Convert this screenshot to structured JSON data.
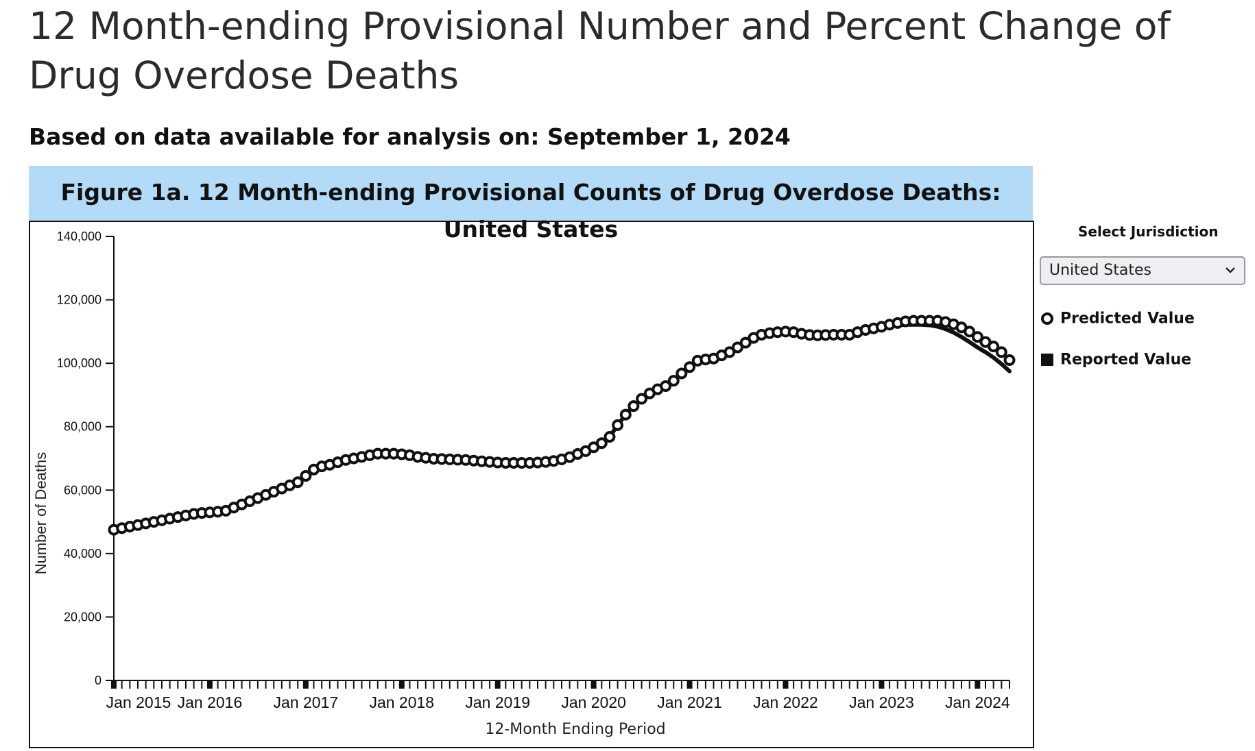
{
  "page": {
    "title": "12 Month-ending Provisional Number and Percent Change of Drug Overdose Deaths",
    "subtitle": "Based on data available for analysis on: September 1, 2024"
  },
  "figure": {
    "title": "Figure 1a. 12 Month-ending Provisional Counts of Drug Overdose Deaths: United States"
  },
  "controls": {
    "select_label": "Select Jurisdiction",
    "selected_value": "United States"
  },
  "legend": {
    "predicted_label": "Predicted Value",
    "reported_label": "Reported Value"
  },
  "colors": {
    "header_bg": "#b3dbf8",
    "line": "#111111",
    "marker_fill": "#ffffff"
  },
  "chart_data": {
    "type": "line",
    "title": "Figure 1a. 12 Month-ending Provisional Counts of Drug Overdose Deaths: United States",
    "xlabel": "12-Month Ending Period",
    "ylabel": "Number of Deaths",
    "ylim": [
      0,
      140000
    ],
    "yticks": [
      0,
      20000,
      40000,
      60000,
      80000,
      100000,
      120000,
      140000
    ],
    "ytick_labels": [
      "0",
      "20,000",
      "40,000",
      "60,000",
      "80,000",
      "100,000",
      "120,000",
      "140,000"
    ],
    "xticks": [
      "Jan 2015",
      "Jan 2016",
      "Jan 2017",
      "Jan 2018",
      "Jan 2019",
      "Jan 2020",
      "Jan 2021",
      "Jan 2022",
      "Jan 2023",
      "Jan 2024"
    ],
    "x_start": "Jan 2015",
    "x_end": "Apr 2024",
    "legend": [
      "Predicted Value",
      "Reported Value"
    ],
    "legend_position": "right",
    "grid": false,
    "series": [
      {
        "name": "Predicted Value",
        "marker": "open-circle",
        "values": [
          47500,
          48000,
          48500,
          49000,
          49500,
          50000,
          50500,
          51000,
          51500,
          52000,
          52500,
          52800,
          53000,
          53200,
          53500,
          54500,
          55500,
          56500,
          57500,
          58500,
          59500,
          60500,
          61500,
          62500,
          64500,
          66500,
          67500,
          68000,
          68800,
          69500,
          70000,
          70500,
          71000,
          71500,
          71500,
          71500,
          71300,
          71000,
          70500,
          70200,
          69900,
          69800,
          69700,
          69600,
          69500,
          69300,
          69100,
          68900,
          68700,
          68600,
          68600,
          68600,
          68600,
          68700,
          68900,
          69200,
          69700,
          70400,
          71400,
          72300,
          73500,
          74800,
          76800,
          80500,
          83800,
          86500,
          88800,
          90500,
          91800,
          92800,
          94500,
          96800,
          98800,
          100800,
          101200,
          101500,
          102500,
          103500,
          105000,
          106500,
          108000,
          109000,
          109500,
          109800,
          110000,
          109800,
          109300,
          108900,
          108800,
          108900,
          109000,
          109000,
          109000,
          109800,
          110500,
          111000,
          111500,
          112200,
          112700,
          113200,
          113400,
          113400,
          113400,
          113400,
          113000,
          112300,
          111300,
          110000,
          108300,
          106700,
          105300,
          103500,
          101000
        ]
      },
      {
        "name": "Reported Value",
        "marker": "line",
        "values": [
          47500,
          48000,
          48500,
          49000,
          49500,
          50000,
          50500,
          51000,
          51500,
          52000,
          52500,
          52800,
          53000,
          53200,
          53500,
          54500,
          55500,
          56500,
          57500,
          58500,
          59500,
          60500,
          61500,
          62500,
          64500,
          66500,
          67500,
          68000,
          68800,
          69500,
          70000,
          70500,
          71000,
          71500,
          71500,
          71500,
          71300,
          71000,
          70500,
          70200,
          69900,
          69800,
          69700,
          69600,
          69500,
          69300,
          69100,
          68900,
          68700,
          68600,
          68600,
          68600,
          68600,
          68700,
          68900,
          69200,
          69700,
          70400,
          71400,
          72300,
          73500,
          74800,
          76800,
          80500,
          83800,
          86500,
          88800,
          90500,
          91800,
          92800,
          94500,
          96800,
          98800,
          100800,
          101200,
          101500,
          102500,
          103500,
          105000,
          106500,
          108000,
          109000,
          109500,
          109800,
          110000,
          109800,
          109300,
          108900,
          108800,
          108900,
          109000,
          109000,
          109000,
          109800,
          110500,
          111000,
          111300,
          111700,
          112000,
          112200,
          112200,
          112200,
          112000,
          111600,
          110800,
          109700,
          108300,
          106700,
          105000,
          103500,
          101800,
          99800,
          97500
        ]
      }
    ]
  }
}
